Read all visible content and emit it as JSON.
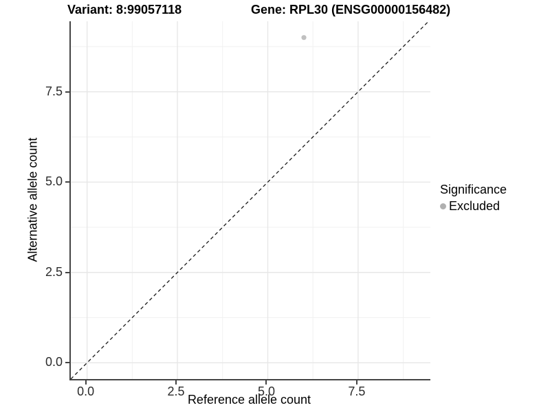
{
  "titles": {
    "variant": "Variant: 8:99057118",
    "gene": "Gene: RPL30 (ENSG00000156482)"
  },
  "chart_data": {
    "type": "scatter",
    "title_left": "Variant: 8:99057118",
    "title_right": "Gene: RPL30 (ENSG00000156482)",
    "xlabel": "Reference allele count",
    "ylabel": "Alternative allele count",
    "xlim": [
      -0.45,
      9.5
    ],
    "ylim": [
      -0.45,
      9.45
    ],
    "x_ticks": [
      {
        "value": 0.0,
        "label": "0.0"
      },
      {
        "value": 2.5,
        "label": "2.5"
      },
      {
        "value": 5.0,
        "label": "5.0"
      },
      {
        "value": 7.5,
        "label": "7.5"
      }
    ],
    "y_ticks": [
      {
        "value": 0.0,
        "label": "0.0"
      },
      {
        "value": 2.5,
        "label": "2.5"
      },
      {
        "value": 5.0,
        "label": "5.0"
      },
      {
        "value": 7.5,
        "label": "7.5"
      }
    ],
    "minor_grid_values": [
      1.25,
      3.75,
      6.25,
      8.75
    ],
    "grid": true,
    "points": [
      {
        "x": 6,
        "y": 9,
        "series": "Excluded"
      }
    ],
    "identity_line": {
      "slope": 1,
      "intercept": 0,
      "style": "dashed"
    },
    "legend": {
      "title": "Significance",
      "position": "right",
      "entries": [
        {
          "label": "Excluded",
          "color": "#b0b0b0"
        }
      ]
    },
    "colors": {
      "point": "#c0c0c0",
      "major_grid": "#e7e7e7",
      "minor_grid": "#f1f1f1",
      "axis_line": "#434343",
      "dashed_line": "#1a1a1a"
    }
  }
}
